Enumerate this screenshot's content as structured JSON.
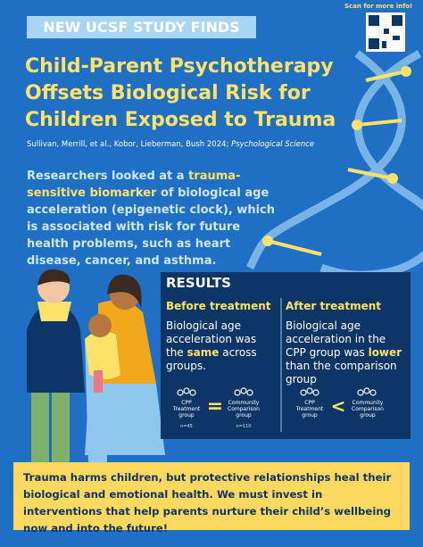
{
  "header": {
    "badge": "NEW UCSF STUDY FINDS",
    "scan_note": "Scan for more info!",
    "title_lines": [
      "Child-Parent Psychotherapy",
      "Offsets Biological Risk for",
      "Children Exposed to Trauma"
    ],
    "citation": "Sullivan, Merrill, et al., Kobor, Lieberman, Bush 2024;",
    "journal": "Psychological Science"
  },
  "intro": {
    "parts": [
      "Researchers looked at a ",
      "trauma-sensitive biomarker",
      " of biological age acceleration (epigenetic clock), which is associated with risk for future health problems, such as heart disease, cancer, and asthma."
    ]
  },
  "results": {
    "heading": "RESULTS",
    "before": {
      "title": "Before treatment",
      "parts": [
        "Biological age acceleration was the ",
        "same",
        " across groups."
      ],
      "left_group": "CPP Treatment group",
      "left_n": "n=45",
      "symbol": "=",
      "right_group": "Community Comparison group",
      "right_n": "n=110"
    },
    "after": {
      "title": "After treatment",
      "parts": [
        "Biological age acceleration in the CPP group was ",
        "lower",
        " than the comparison group"
      ],
      "left_group": "CPP Treatment group",
      "symbol": "<",
      "right_group": "Community Comparison group"
    }
  },
  "footer": {
    "text": "Trauma harms children, but protective relationships heal their biological and emotional health. We must invest in interventions that help parents nurture their child’s wellbeing now and into the future!"
  }
}
